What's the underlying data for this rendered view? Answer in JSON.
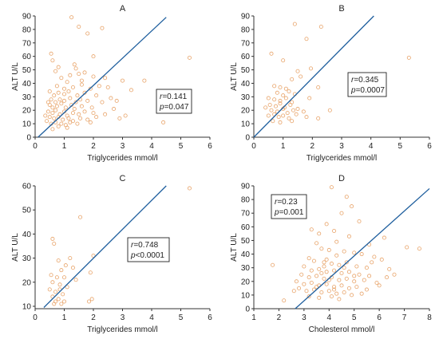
{
  "colors": {
    "points": "#e8a46a",
    "line": "#1f5f9e",
    "axis": "#333333",
    "box": "#222222"
  },
  "chart_data": [
    {
      "id": "A",
      "type": "scatter",
      "title": "A",
      "xlabel": "Triglycerides mmol/l",
      "ylabel": "ALT U/L",
      "xlim": [
        0,
        6
      ],
      "ylim": [
        0,
        90
      ],
      "xticks": [
        0,
        1,
        2,
        3,
        4,
        5,
        6
      ],
      "yticks": [
        0,
        10,
        20,
        30,
        40,
        50,
        60,
        70,
        80,
        90
      ],
      "stats": {
        "r_label": "r",
        "r_value": "=0.141",
        "p_label": "p",
        "p_value": "=0.047"
      },
      "regression": {
        "x": [
          0.1,
          4.5
        ],
        "y": [
          0,
          89
        ]
      },
      "points": [
        [
          1.25,
          89
        ],
        [
          1.5,
          82
        ],
        [
          2.3,
          81
        ],
        [
          1.8,
          77
        ],
        [
          5.3,
          59
        ],
        [
          0.55,
          62
        ],
        [
          0.6,
          57
        ],
        [
          0.8,
          52
        ],
        [
          0.7,
          49
        ],
        [
          1.35,
          54
        ],
        [
          1.4,
          51
        ],
        [
          1.7,
          48
        ],
        [
          1.2,
          46
        ],
        [
          1.5,
          47
        ],
        [
          2.0,
          45
        ],
        [
          2.4,
          44
        ],
        [
          3.0,
          42
        ],
        [
          3.75,
          42
        ],
        [
          0.9,
          44
        ],
        [
          0.75,
          38
        ],
        [
          1.1,
          41
        ],
        [
          1.3,
          37
        ],
        [
          1.6,
          39
        ],
        [
          1.9,
          36
        ],
        [
          2.2,
          38
        ],
        [
          2.5,
          37
        ],
        [
          0.5,
          34
        ],
        [
          0.65,
          31
        ],
        [
          0.8,
          33
        ],
        [
          1.0,
          32
        ],
        [
          1.15,
          34
        ],
        [
          1.45,
          31
        ],
        [
          1.7,
          33
        ],
        [
          2.1,
          31
        ],
        [
          2.6,
          29
        ],
        [
          0.55,
          28
        ],
        [
          0.7,
          26
        ],
        [
          0.85,
          28
        ],
        [
          1.0,
          27
        ],
        [
          1.2,
          29
        ],
        [
          1.4,
          26
        ],
        [
          1.55,
          28
        ],
        [
          1.8,
          27
        ],
        [
          2.3,
          26
        ],
        [
          0.5,
          24
        ],
        [
          0.6,
          22
        ],
        [
          0.75,
          23
        ],
        [
          0.9,
          25
        ],
        [
          1.05,
          22
        ],
        [
          1.25,
          24
        ],
        [
          1.35,
          21
        ],
        [
          1.6,
          23
        ],
        [
          1.95,
          22
        ],
        [
          2.7,
          21
        ],
        [
          0.45,
          19
        ],
        [
          0.6,
          18
        ],
        [
          0.7,
          20
        ],
        [
          0.85,
          17
        ],
        [
          1.0,
          19
        ],
        [
          1.1,
          16
        ],
        [
          1.3,
          18
        ],
        [
          1.5,
          17
        ],
        [
          1.7,
          19
        ],
        [
          2.0,
          18
        ],
        [
          2.4,
          17
        ],
        [
          3.1,
          16
        ],
        [
          0.5,
          15
        ],
        [
          0.65,
          14
        ],
        [
          0.8,
          15
        ],
        [
          0.95,
          13
        ],
        [
          1.15,
          14
        ],
        [
          1.3,
          12
        ],
        [
          1.55,
          14
        ],
        [
          1.8,
          13
        ],
        [
          2.1,
          15
        ],
        [
          2.9,
          14
        ],
        [
          0.4,
          12
        ],
        [
          0.55,
          10
        ],
        [
          0.7,
          11
        ],
        [
          0.9,
          10
        ],
        [
          1.05,
          9
        ],
        [
          1.2,
          11
        ],
        [
          1.45,
          10
        ],
        [
          1.9,
          11
        ],
        [
          4.4,
          11
        ],
        [
          0.6,
          6
        ],
        [
          0.8,
          8
        ],
        [
          1.1,
          7
        ],
        [
          0.35,
          16
        ],
        [
          0.45,
          26
        ],
        [
          1.0,
          36
        ],
        [
          1.6,
          42
        ],
        [
          2.8,
          27
        ],
        [
          3.3,
          35
        ],
        [
          2.0,
          60
        ]
      ]
    },
    {
      "id": "B",
      "type": "scatter",
      "title": "B",
      "xlabel": "Triglycerides mmol/l",
      "ylabel": "ALT U/L",
      "xlim": [
        0,
        6
      ],
      "ylim": [
        0,
        90
      ],
      "xticks": [
        0,
        1,
        2,
        3,
        4,
        5,
        6
      ],
      "yticks": [
        0,
        10,
        20,
        30,
        40,
        50,
        60,
        70,
        80,
        90
      ],
      "stats": {
        "r_label": "r",
        "r_value": "=0.345",
        "p_label": "p",
        "p_value": "=0.0007"
      },
      "regression": {
        "x": [
          0.0,
          4.1
        ],
        "y": [
          0,
          90
        ]
      },
      "points": [
        [
          1.4,
          84
        ],
        [
          2.3,
          82
        ],
        [
          1.8,
          73
        ],
        [
          5.3,
          59
        ],
        [
          0.6,
          62
        ],
        [
          1.0,
          57
        ],
        [
          1.5,
          49
        ],
        [
          1.95,
          51
        ],
        [
          1.3,
          43
        ],
        [
          1.6,
          45
        ],
        [
          0.7,
          38
        ],
        [
          0.9,
          37
        ],
        [
          1.1,
          36
        ],
        [
          2.2,
          37
        ],
        [
          0.8,
          33
        ],
        [
          1.0,
          31
        ],
        [
          1.2,
          34
        ],
        [
          1.4,
          32
        ],
        [
          0.5,
          29
        ],
        [
          0.7,
          28
        ],
        [
          0.9,
          27
        ],
        [
          1.1,
          29
        ],
        [
          1.3,
          26
        ],
        [
          0.55,
          24
        ],
        [
          0.75,
          23
        ],
        [
          0.9,
          25
        ],
        [
          1.05,
          22
        ],
        [
          1.25,
          24
        ],
        [
          1.5,
          21
        ],
        [
          0.6,
          20
        ],
        [
          0.8,
          19
        ],
        [
          1.0,
          21
        ],
        [
          1.15,
          18
        ],
        [
          1.35,
          20
        ],
        [
          1.7,
          19
        ],
        [
          0.5,
          16
        ],
        [
          0.7,
          17
        ],
        [
          0.85,
          15
        ],
        [
          1.0,
          16
        ],
        [
          1.2,
          14
        ],
        [
          1.45,
          17
        ],
        [
          1.8,
          15
        ],
        [
          2.2,
          14
        ],
        [
          0.65,
          12
        ],
        [
          0.9,
          11
        ],
        [
          1.3,
          12
        ],
        [
          2.6,
          20
        ],
        [
          0.4,
          22
        ],
        [
          1.9,
          29
        ]
      ]
    },
    {
      "id": "C",
      "type": "scatter",
      "title": "C",
      "xlabel": "Triglycerides mmol/l",
      "ylabel": "ALT U/L",
      "xlim": [
        0,
        6
      ],
      "ylim": [
        9,
        60
      ],
      "xticks": [
        0,
        1,
        2,
        3,
        4,
        5,
        6
      ],
      "yticks": [
        10,
        20,
        30,
        40,
        50,
        60
      ],
      "stats": {
        "r_label": "r",
        "r_value": "=0.748",
        "p_label": "p",
        "p_value": "<0.0001"
      },
      "regression": {
        "x": [
          0.3,
          4.5
        ],
        "y": [
          9.5,
          60
        ]
      },
      "points": [
        [
          5.3,
          59
        ],
        [
          1.55,
          47
        ],
        [
          0.6,
          38
        ],
        [
          0.65,
          36
        ],
        [
          2.0,
          31
        ],
        [
          1.2,
          30
        ],
        [
          0.8,
          29
        ],
        [
          1.05,
          27
        ],
        [
          1.3,
          26
        ],
        [
          0.9,
          25
        ],
        [
          1.9,
          24
        ],
        [
          0.55,
          23
        ],
        [
          0.75,
          22
        ],
        [
          1.0,
          22
        ],
        [
          1.4,
          21
        ],
        [
          0.6,
          20
        ],
        [
          0.85,
          19
        ],
        [
          1.1,
          18
        ],
        [
          0.5,
          17
        ],
        [
          0.7,
          16
        ],
        [
          0.95,
          15
        ],
        [
          0.6,
          14
        ],
        [
          0.8,
          13
        ],
        [
          1.0,
          12
        ],
        [
          0.7,
          12
        ],
        [
          0.9,
          11
        ],
        [
          1.85,
          12
        ],
        [
          1.95,
          13
        ],
        [
          0.85,
          17
        ],
        [
          0.65,
          11
        ]
      ]
    },
    {
      "id": "D",
      "type": "scatter",
      "title": "D",
      "xlabel": "Cholesterol mmol/l",
      "ylabel": "ALT U/L",
      "xlim": [
        1,
        8
      ],
      "ylim": [
        0,
        90
      ],
      "xticks": [
        1,
        2,
        3,
        4,
        5,
        6,
        7,
        8
      ],
      "yticks": [
        0,
        10,
        20,
        30,
        40,
        50,
        60,
        70,
        80,
        90
      ],
      "stats": {
        "r_label": "r",
        "r_value": "=0.23",
        "p_label": "p",
        "p_value": "=0.001"
      },
      "regression": {
        "x": [
          2.65,
          8.0
        ],
        "y": [
          0,
          88
        ]
      },
      "points": [
        [
          4.1,
          89
        ],
        [
          4.7,
          82
        ],
        [
          4.9,
          75
        ],
        [
          4.5,
          70
        ],
        [
          5.2,
          64
        ],
        [
          3.9,
          62
        ],
        [
          3.3,
          58
        ],
        [
          4.2,
          57
        ],
        [
          3.6,
          55
        ],
        [
          6.2,
          52
        ],
        [
          4.8,
          53
        ],
        [
          4.3,
          49
        ],
        [
          3.5,
          48
        ],
        [
          5.6,
          47
        ],
        [
          7.1,
          45
        ],
        [
          3.7,
          44
        ],
        [
          4.0,
          43
        ],
        [
          4.6,
          42
        ],
        [
          5.0,
          41
        ],
        [
          5.3,
          40
        ],
        [
          5.8,
          38
        ],
        [
          6.1,
          36
        ],
        [
          3.2,
          37
        ],
        [
          3.4,
          35
        ],
        [
          3.8,
          34
        ],
        [
          4.1,
          33
        ],
        [
          4.4,
          32
        ],
        [
          4.7,
          34
        ],
        [
          5.1,
          31
        ],
        [
          5.5,
          30
        ],
        [
          6.4,
          29
        ],
        [
          3.0,
          31
        ],
        [
          3.3,
          28
        ],
        [
          3.6,
          29
        ],
        [
          3.9,
          27
        ],
        [
          4.2,
          28
        ],
        [
          4.5,
          26
        ],
        [
          4.8,
          27
        ],
        [
          5.2,
          25
        ],
        [
          5.6,
          24
        ],
        [
          6.3,
          23
        ],
        [
          2.9,
          25
        ],
        [
          3.2,
          23
        ],
        [
          3.5,
          24
        ],
        [
          3.8,
          22
        ],
        [
          4.1,
          23
        ],
        [
          4.4,
          21
        ],
        [
          4.7,
          22
        ],
        [
          5.0,
          20
        ],
        [
          5.4,
          21
        ],
        [
          5.9,
          19
        ],
        [
          2.7,
          20
        ],
        [
          3.0,
          18
        ],
        [
          3.3,
          19
        ],
        [
          3.6,
          17
        ],
        [
          3.9,
          18
        ],
        [
          4.2,
          16
        ],
        [
          4.5,
          17
        ],
        [
          4.8,
          15
        ],
        [
          5.1,
          16
        ],
        [
          5.5,
          14
        ],
        [
          6.0,
          17
        ],
        [
          2.8,
          15
        ],
        [
          3.1,
          13
        ],
        [
          3.4,
          14
        ],
        [
          3.7,
          12
        ],
        [
          4.0,
          13
        ],
        [
          4.3,
          11
        ],
        [
          4.6,
          12
        ],
        [
          4.9,
          10
        ],
        [
          5.3,
          11
        ],
        [
          3.2,
          9
        ],
        [
          3.6,
          8
        ],
        [
          4.1,
          9
        ],
        [
          4.4,
          7
        ],
        [
          2.2,
          6
        ],
        [
          2.6,
          13
        ],
        [
          1.75,
          32
        ],
        [
          3.9,
          36
        ],
        [
          4.3,
          39
        ],
        [
          3.7,
          26
        ],
        [
          4.0,
          21
        ],
        [
          4.6,
          30
        ],
        [
          5.7,
          34
        ],
        [
          6.6,
          25
        ],
        [
          7.6,
          44
        ],
        [
          3.5,
          16
        ],
        [
          3.8,
          31
        ],
        [
          4.2,
          14
        ],
        [
          5.0,
          24
        ]
      ]
    }
  ]
}
